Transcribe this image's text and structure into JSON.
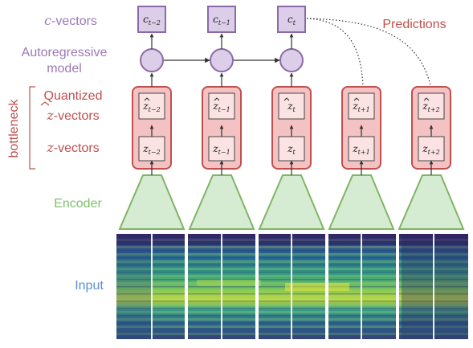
{
  "labels": {
    "c_vectors_var": "c",
    "c_vectors_suffix": "-vectors",
    "autoregressive_line1": "Autoregressive",
    "autoregressive_line2": "model",
    "bottleneck": "bottleneck",
    "quantized_line1": "Quantized",
    "quantized_var": "z",
    "quantized_suffix": "-vectors",
    "z_vectors_var": "z",
    "z_vectors_suffix": "-vectors",
    "encoder": "Encoder",
    "input": "Input",
    "predictions": "Predictions"
  },
  "timesteps": [
    {
      "c": "c",
      "c_sub": "t−2",
      "zq": "z",
      "zq_sub": "t−2",
      "z": "z",
      "z_sub": "t−2",
      "has_context": true
    },
    {
      "c": "c",
      "c_sub": "t−1",
      "zq": "z",
      "zq_sub": "t−1",
      "z": "z",
      "z_sub": "t−1",
      "has_context": true
    },
    {
      "c": "c",
      "c_sub": "t",
      "zq": "z",
      "zq_sub": "t",
      "z": "z",
      "z_sub": "t",
      "has_context": true
    },
    {
      "zq": "z",
      "zq_sub": "t+1",
      "z": "z",
      "z_sub": "t+1",
      "has_context": false
    },
    {
      "zq": "z",
      "zq_sub": "t+2",
      "z": "z",
      "z_sub": "t+2",
      "has_context": false
    }
  ],
  "colors": {
    "purple_text": "#9b79b6",
    "purple_fill": "#dccde8",
    "purple_stroke": "#8a6aa8",
    "red_text": "#c0504d",
    "red_fill": "#f4c2c2",
    "red_stroke": "#c0504d",
    "green_text": "#7fbf6a",
    "green_fill": "#d5ecd2",
    "green_stroke": "#7fb565",
    "blue_text": "#5b8fd0"
  }
}
